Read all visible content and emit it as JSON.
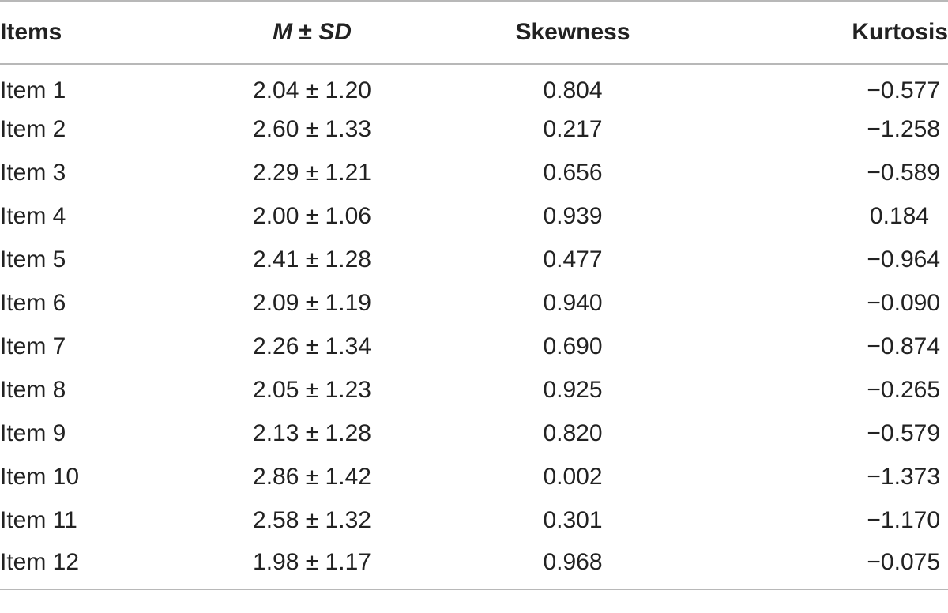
{
  "table": {
    "headers": {
      "items": "Items",
      "m": "M",
      "pm": "±",
      "sd": "SD",
      "skewness": "Skewness",
      "kurtosis": "Kurtosis"
    },
    "rows": [
      {
        "item": "Item 1",
        "msd": "2.04 ± 1.20",
        "skewness": "0.804",
        "kurtosis": "−0.577"
      },
      {
        "item": "Item 2",
        "msd": "2.60 ± 1.33",
        "skewness": "0.217",
        "kurtosis": "−1.258"
      },
      {
        "item": "Item 3",
        "msd": "2.29 ± 1.21",
        "skewness": "0.656",
        "kurtosis": "−0.589"
      },
      {
        "item": "Item 4",
        "msd": "2.00 ± 1.06",
        "skewness": "0.939",
        "kurtosis": "0.184"
      },
      {
        "item": "Item 5",
        "msd": "2.41 ± 1.28",
        "skewness": "0.477",
        "kurtosis": "−0.964"
      },
      {
        "item": "Item 6",
        "msd": "2.09 ± 1.19",
        "skewness": "0.940",
        "kurtosis": "−0.090"
      },
      {
        "item": "Item 7",
        "msd": "2.26 ± 1.34",
        "skewness": "0.690",
        "kurtosis": "−0.874"
      },
      {
        "item": "Item 8",
        "msd": "2.05 ± 1.23",
        "skewness": "0.925",
        "kurtosis": "−0.265"
      },
      {
        "item": "Item 9",
        "msd": "2.13 ± 1.28",
        "skewness": "0.820",
        "kurtosis": "−0.579"
      },
      {
        "item": "Item 10",
        "msd": "2.86 ± 1.42",
        "skewness": "0.002",
        "kurtosis": "−1.373"
      },
      {
        "item": "Item 11",
        "msd": "2.58 ± 1.32",
        "skewness": "0.301",
        "kurtosis": "−1.170"
      },
      {
        "item": "Item 12",
        "msd": "1.98 ± 1.17",
        "skewness": "0.968",
        "kurtosis": "−0.075"
      }
    ]
  }
}
